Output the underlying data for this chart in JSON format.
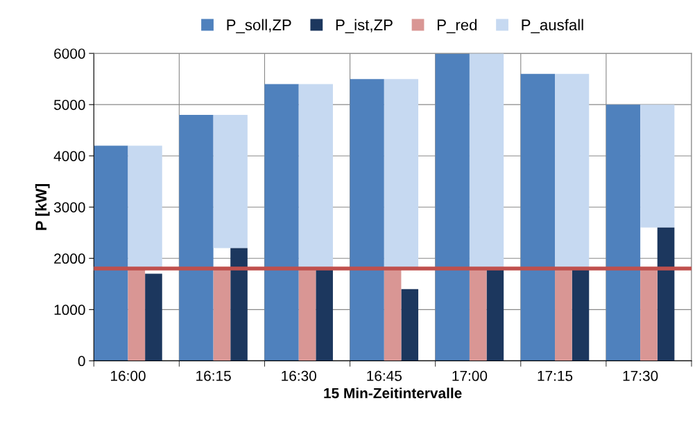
{
  "chart_data": {
    "type": "bar",
    "xlabel": "15 Min-Zeitintervalle",
    "ylabel": "P [kW]",
    "categories": [
      "16:00",
      "16:15",
      "16:30",
      "16:45",
      "17:00",
      "17:15",
      "17:30"
    ],
    "series": [
      {
        "name": "P_soll,ZP",
        "color": "#4f81bd",
        "values": [
          4200,
          4800,
          5400,
          5500,
          6000,
          5600,
          5000
        ]
      },
      {
        "name": "P_ist,ZP",
        "color": "#1c375e",
        "values": [
          1700,
          2200,
          1800,
          1400,
          1800,
          1800,
          2600
        ]
      },
      {
        "name": "P_red",
        "color": "#d99694",
        "values": [
          1800,
          1800,
          1800,
          1800,
          1800,
          1800,
          1800
        ]
      },
      {
        "name": "P_ausfall",
        "color": "#c6d9f1",
        "values": [
          2400,
          2600,
          3600,
          3700,
          4200,
          3800,
          2400
        ],
        "base": [
          1800,
          2200,
          1800,
          1800,
          1800,
          1800,
          2600
        ]
      }
    ],
    "ylim": [
      0,
      6000
    ],
    "yticks": [
      0,
      1000,
      2000,
      3000,
      4000,
      5000,
      6000
    ],
    "grid": true,
    "legend": "top",
    "ref_lines": [
      {
        "axis": "y",
        "value": 1800,
        "label": null,
        "color": "#c0504d"
      }
    ]
  }
}
